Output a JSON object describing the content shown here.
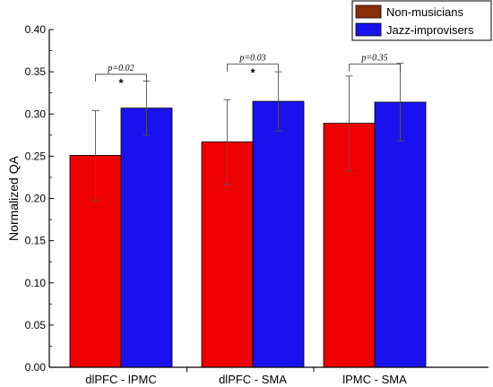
{
  "chart_data": {
    "type": "bar",
    "title": "",
    "xlabel": "",
    "ylabel": "Normalized QA",
    "ylim": [
      0.0,
      0.4
    ],
    "yticks": [
      "0.00",
      "0.05",
      "0.10",
      "0.15",
      "0.20",
      "0.25",
      "0.30",
      "0.35",
      "0.40"
    ],
    "categories": [
      "dlPFC - lPMC",
      "dlPFC - SMA",
      "lPMC - SMA"
    ],
    "series": [
      {
        "name": "Non-musicians",
        "color": "#ee0000",
        "legend_color": "#8b2e0c",
        "values": [
          0.251,
          0.267,
          0.289
        ],
        "error": [
          0.053,
          0.05,
          0.056
        ]
      },
      {
        "name": "Jazz-improvisers",
        "color": "#1a12ee",
        "legend_color": "#1a12ee",
        "values": [
          0.307,
          0.315,
          0.314
        ],
        "error": [
          0.032,
          0.035,
          0.046
        ]
      }
    ],
    "comparisons": [
      {
        "category": "dlPFC - lPMC",
        "p_label": "p=0.02",
        "star": "*",
        "bracket_y": 0.347
      },
      {
        "category": "dlPFC - SMA",
        "p_label": "p=0.03",
        "star": "*",
        "bracket_y": 0.359
      },
      {
        "category": "lPMC - SMA",
        "p_label": "p=0.35",
        "star": "",
        "bracket_y": 0.359
      }
    ],
    "legend_position": "top-right",
    "grid": false
  }
}
